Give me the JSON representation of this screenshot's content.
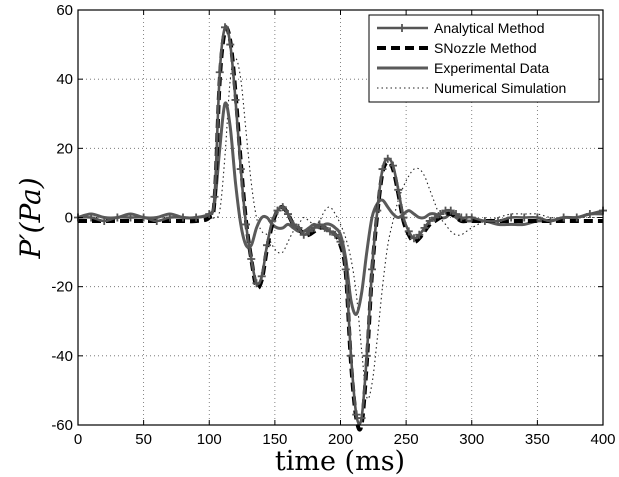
{
  "chart_data": {
    "type": "line",
    "xlabel": "time (ms)",
    "ylabel": "P′(Pa)",
    "xlim": [
      0,
      400
    ],
    "ylim": [
      -60,
      60
    ],
    "xticks": [
      0,
      50,
      100,
      150,
      200,
      250,
      300,
      350,
      400
    ],
    "yticks": [
      -60,
      -40,
      -20,
      0,
      20,
      40,
      60
    ],
    "grid": true,
    "legend_position": "top-right",
    "series": [
      {
        "name": "Analytical Method",
        "color": "#555555",
        "style": "solid-plus-markers",
        "x": [
          0,
          10,
          20,
          30,
          40,
          50,
          60,
          70,
          80,
          90,
          100,
          104,
          108,
          112,
          116,
          120,
          124,
          128,
          132,
          136,
          140,
          144,
          148,
          152,
          156,
          160,
          164,
          168,
          172,
          176,
          180,
          184,
          188,
          192,
          196,
          200,
          204,
          208,
          212,
          216,
          220,
          224,
          228,
          232,
          236,
          240,
          244,
          248,
          252,
          256,
          260,
          264,
          268,
          272,
          276,
          280,
          284,
          288,
          292,
          296,
          300,
          310,
          320,
          330,
          340,
          350,
          360,
          370,
          380,
          390,
          400
        ],
        "y": [
          0,
          0,
          -1,
          0,
          0,
          0,
          -1,
          0,
          0,
          0,
          1,
          6,
          42,
          55,
          50,
          34,
          14,
          -2,
          -12,
          -19,
          -17,
          -8,
          -1,
          2,
          3,
          1,
          -2,
          -3,
          -5,
          -4,
          -3,
          -2,
          -3,
          -4,
          -5,
          -7,
          -15,
          -40,
          -57,
          -58,
          -40,
          -15,
          2,
          14,
          17,
          15,
          8,
          0,
          -4,
          -6,
          -5,
          -3,
          -1,
          0,
          1,
          2,
          2,
          1,
          0,
          0,
          0,
          -1,
          -1,
          0,
          0,
          0,
          -1,
          0,
          0,
          1,
          2
        ]
      },
      {
        "name": "SNozzle Method",
        "color": "#000000",
        "style": "dashed",
        "x": [
          0,
          10,
          20,
          30,
          40,
          50,
          60,
          70,
          80,
          90,
          100,
          104,
          108,
          112,
          116,
          120,
          124,
          128,
          132,
          136,
          140,
          144,
          148,
          152,
          156,
          160,
          164,
          168,
          172,
          176,
          180,
          184,
          188,
          192,
          196,
          200,
          204,
          208,
          212,
          216,
          220,
          224,
          228,
          232,
          236,
          240,
          244,
          248,
          252,
          256,
          260,
          264,
          268,
          272,
          276,
          280,
          284,
          288,
          292,
          296,
          300,
          310,
          320,
          330,
          340,
          350,
          360,
          370,
          380,
          390,
          400
        ],
        "y": [
          -1,
          -1,
          -1,
          -1,
          -1,
          -1,
          -1,
          -1,
          -1,
          -1,
          0,
          5,
          40,
          54,
          51,
          36,
          16,
          -1,
          -12,
          -20,
          -18,
          -9,
          -2,
          2,
          3,
          1,
          -2,
          -3,
          -5,
          -5,
          -4,
          -3,
          -3,
          -4,
          -5,
          -8,
          -16,
          -42,
          -58,
          -60,
          -42,
          -16,
          1,
          13,
          16,
          14,
          7,
          -1,
          -5,
          -7,
          -6,
          -4,
          -2,
          -1,
          0,
          1,
          1,
          0,
          -1,
          -1,
          -1,
          -1,
          -1,
          -1,
          -1,
          -1,
          -1,
          -1,
          -1,
          -1,
          -1
        ]
      },
      {
        "name": "Experimental Data",
        "color": "#5a5a5a",
        "style": "solid-thick",
        "x": [
          0,
          10,
          20,
          30,
          40,
          50,
          60,
          70,
          80,
          90,
          100,
          104,
          108,
          112,
          116,
          120,
          124,
          128,
          132,
          136,
          140,
          144,
          148,
          152,
          156,
          160,
          164,
          168,
          172,
          176,
          180,
          184,
          188,
          192,
          196,
          200,
          204,
          208,
          212,
          216,
          220,
          224,
          228,
          232,
          236,
          240,
          244,
          248,
          252,
          256,
          260,
          264,
          268,
          272,
          276,
          280,
          284,
          288,
          292,
          296,
          300,
          310,
          320,
          330,
          340,
          350,
          360,
          370,
          380,
          390,
          400
        ],
        "y": [
          0,
          1,
          0,
          0,
          1,
          0,
          0,
          1,
          0,
          0,
          1,
          4,
          20,
          33,
          26,
          10,
          -2,
          -8,
          -8,
          -3,
          0,
          0,
          -2,
          -3,
          -3,
          -2,
          -3,
          -4,
          -4,
          -3,
          -2,
          -3,
          -2,
          -2,
          -3,
          -5,
          -12,
          -24,
          -28,
          -22,
          -10,
          0,
          4,
          5,
          3,
          1,
          0,
          1,
          2,
          1,
          0,
          0,
          1,
          1,
          0,
          0,
          1,
          0,
          -1,
          -1,
          -1,
          -1,
          -2,
          -2,
          -2,
          -1,
          -1,
          0,
          0,
          1,
          1
        ]
      },
      {
        "name": "Numerical Simulation",
        "color": "#222222",
        "style": "dotted",
        "x": [
          0,
          10,
          20,
          30,
          40,
          50,
          60,
          70,
          80,
          90,
          100,
          104,
          108,
          112,
          116,
          120,
          124,
          128,
          132,
          136,
          140,
          144,
          148,
          152,
          156,
          160,
          164,
          168,
          172,
          176,
          180,
          184,
          188,
          192,
          196,
          200,
          204,
          208,
          212,
          216,
          220,
          224,
          228,
          232,
          236,
          240,
          244,
          248,
          252,
          256,
          260,
          264,
          268,
          272,
          276,
          280,
          284,
          288,
          292,
          296,
          300,
          310,
          320,
          330,
          340,
          350,
          360,
          370,
          380,
          390,
          400
        ],
        "y": [
          0,
          0,
          0,
          0,
          0,
          0,
          0,
          0,
          0,
          0,
          0,
          0,
          2,
          18,
          40,
          46,
          40,
          25,
          10,
          0,
          -4,
          -5,
          -8,
          -10,
          -10,
          -7,
          -4,
          -2,
          0,
          -1,
          -2,
          -1,
          2,
          3,
          1,
          -2,
          -6,
          -12,
          -22,
          -38,
          -52,
          -48,
          -35,
          -20,
          -8,
          -1,
          5,
          9,
          12,
          14,
          14,
          12,
          8,
          4,
          0,
          -2,
          -4,
          -5,
          -5,
          -4,
          -3,
          -1,
          0,
          1,
          1,
          1,
          0,
          0,
          0,
          0,
          0
        ]
      }
    ]
  }
}
